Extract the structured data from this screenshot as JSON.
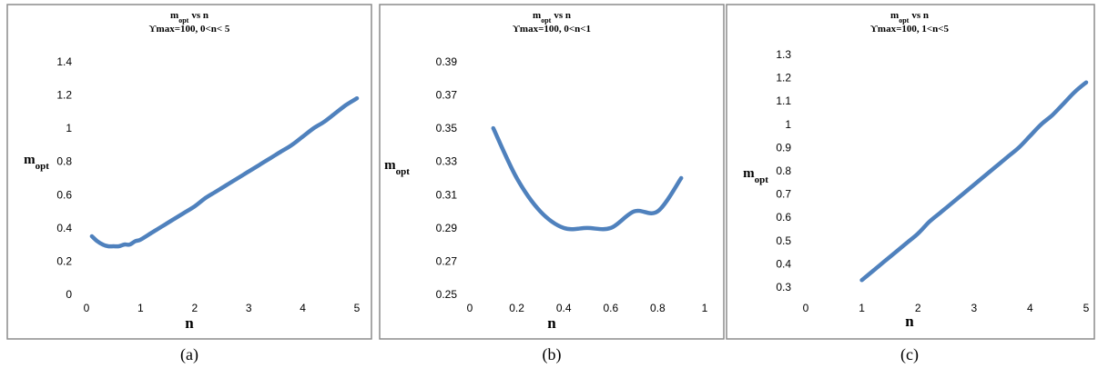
{
  "chart_data": [
    {
      "type": "line",
      "title": "m vs n",
      "title_sub": "opt",
      "subtitle": "ϒmax=100, 0<n< 5",
      "xlabel": "n",
      "ylabel": "m",
      "ylabel_sub": "opt",
      "caption": "(a)",
      "xlim": [
        0,
        5
      ],
      "ylim": [
        0,
        1.4
      ],
      "x_ticks": [
        "0",
        "1",
        "2",
        "3",
        "4",
        "5"
      ],
      "y_ticks": [
        "0",
        "0.2",
        "0.4",
        "0.6",
        "0.8",
        "1",
        "1.2",
        "1.4"
      ],
      "grid": false,
      "series": [
        {
          "color": "#4f81bd",
          "x": [
            0.1,
            0.2,
            0.3,
            0.4,
            0.5,
            0.6,
            0.7,
            0.8,
            0.9,
            1.0,
            1.2,
            1.4,
            1.6,
            1.8,
            2.0,
            2.2,
            2.4,
            2.6,
            2.8,
            3.0,
            3.2,
            3.4,
            3.6,
            3.8,
            4.0,
            4.2,
            4.4,
            4.6,
            4.8,
            5.0
          ],
          "y": [
            0.35,
            0.32,
            0.3,
            0.29,
            0.29,
            0.29,
            0.3,
            0.3,
            0.32,
            0.33,
            0.37,
            0.41,
            0.45,
            0.49,
            0.53,
            0.58,
            0.62,
            0.66,
            0.7,
            0.74,
            0.78,
            0.82,
            0.86,
            0.9,
            0.95,
            1.0,
            1.04,
            1.09,
            1.14,
            1.18
          ]
        }
      ]
    },
    {
      "type": "line",
      "title": "m vs n",
      "title_sub": "opt",
      "subtitle": "ϒmax=100, 0<n<1",
      "xlabel": "n",
      "ylabel": "m",
      "ylabel_sub": "opt",
      "caption": "(b)",
      "xlim": [
        0,
        1
      ],
      "ylim": [
        0.25,
        0.39
      ],
      "x_ticks": [
        "0",
        "0.2",
        "0.4",
        "0.6",
        "0.8",
        "1"
      ],
      "y_ticks": [
        "0.25",
        "0.27",
        "0.29",
        "0.31",
        "0.33",
        "0.35",
        "0.37",
        "0.39"
      ],
      "grid": false,
      "series": [
        {
          "color": "#4f81bd",
          "x": [
            0.1,
            0.2,
            0.3,
            0.4,
            0.5,
            0.6,
            0.7,
            0.8,
            0.9
          ],
          "y": [
            0.35,
            0.32,
            0.3,
            0.29,
            0.29,
            0.29,
            0.3,
            0.3,
            0.32
          ]
        }
      ]
    },
    {
      "type": "line",
      "title": "m vs n",
      "title_sub": "opt",
      "subtitle": "ϒmax=100, 1<n<5",
      "xlabel": "n",
      "ylabel": "m",
      "ylabel_sub": "opt",
      "caption": "(c)",
      "xlim": [
        0,
        5
      ],
      "ylim": [
        0.3,
        1.3
      ],
      "x_ticks": [
        "0",
        "1",
        "2",
        "3",
        "4",
        "5"
      ],
      "y_ticks": [
        "0.3",
        "0.4",
        "0.5",
        "0.6",
        "0.7",
        "0.8",
        "0.9",
        "1",
        "1.1",
        "1.2",
        "1.3"
      ],
      "grid": false,
      "series": [
        {
          "color": "#4f81bd",
          "x": [
            1.0,
            1.2,
            1.4,
            1.6,
            1.8,
            2.0,
            2.2,
            2.4,
            2.6,
            2.8,
            3.0,
            3.2,
            3.4,
            3.6,
            3.8,
            4.0,
            4.2,
            4.4,
            4.6,
            4.8,
            5.0
          ],
          "y": [
            0.33,
            0.37,
            0.41,
            0.45,
            0.49,
            0.53,
            0.58,
            0.62,
            0.66,
            0.7,
            0.74,
            0.78,
            0.82,
            0.86,
            0.9,
            0.95,
            1.0,
            1.04,
            1.09,
            1.14,
            1.18
          ]
        }
      ]
    }
  ]
}
